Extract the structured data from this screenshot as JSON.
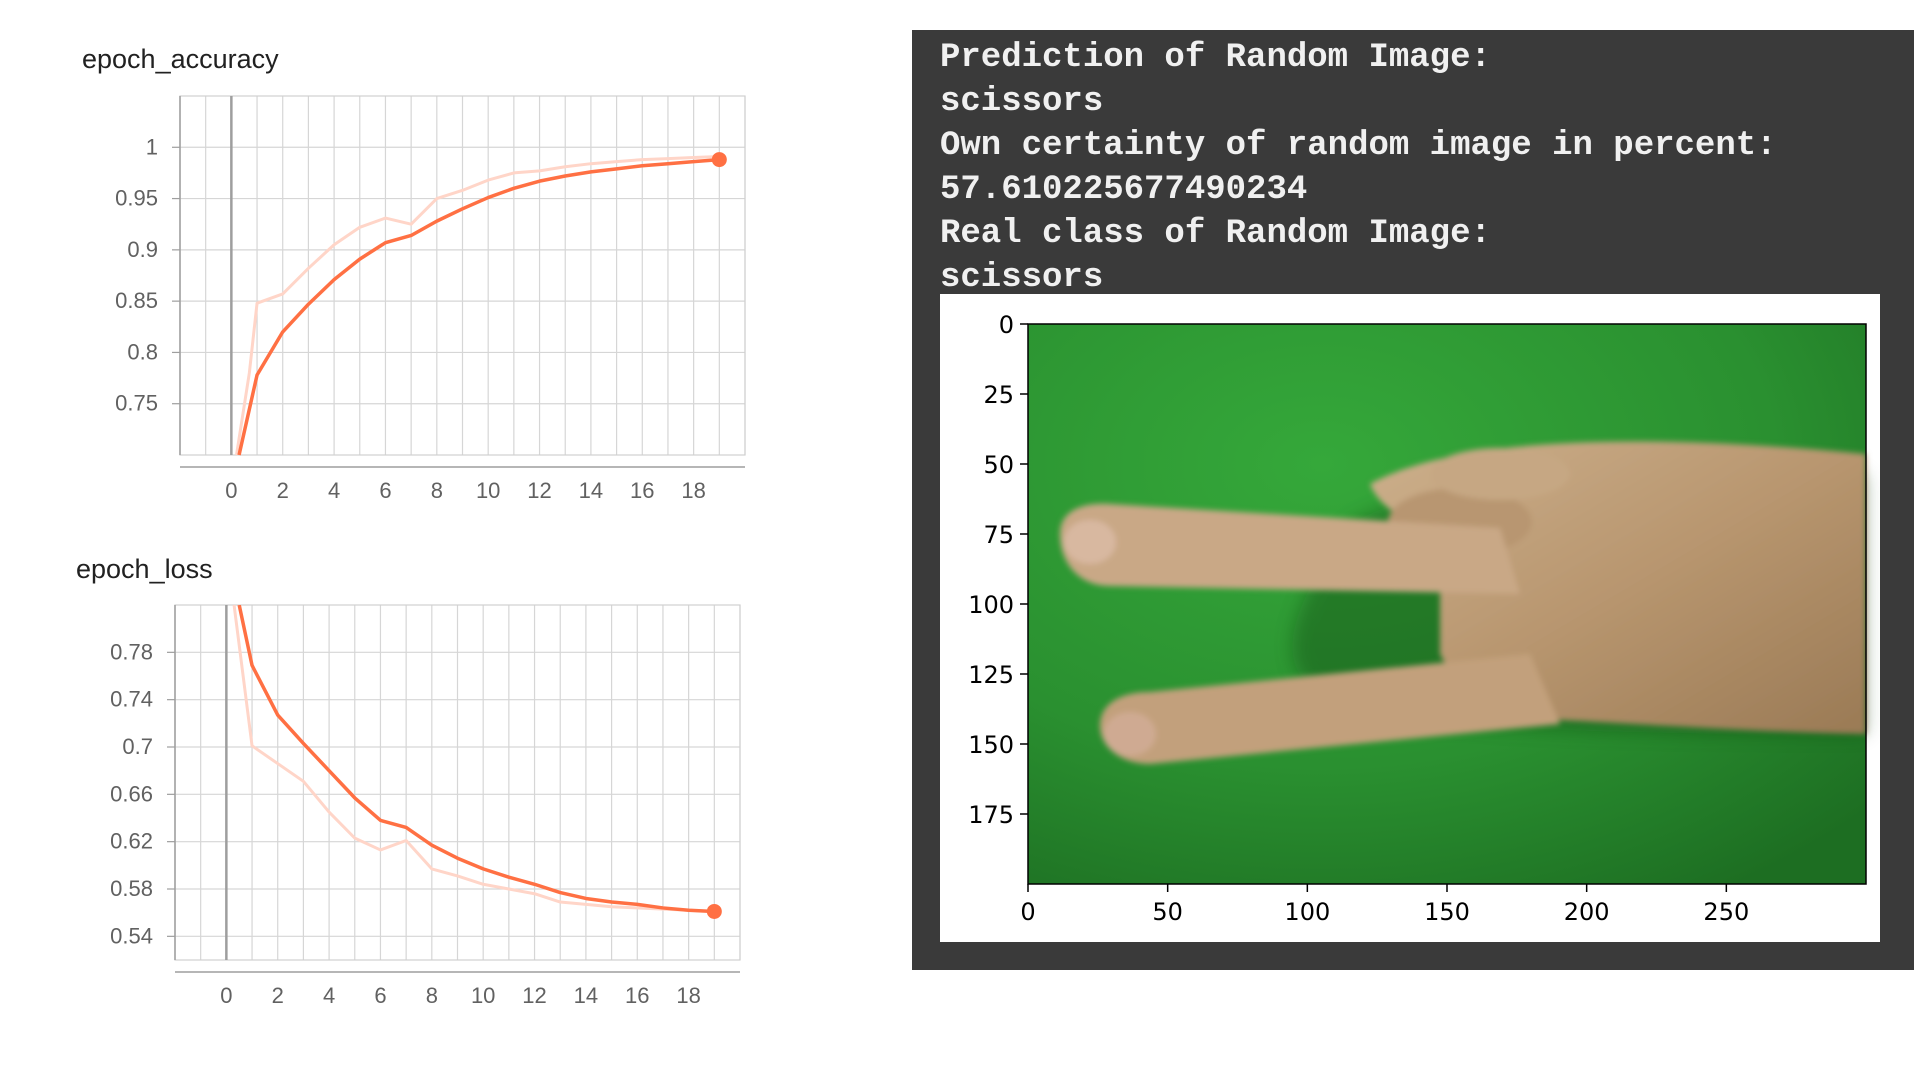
{
  "chart_data": [
    {
      "type": "line",
      "title": "epoch_accuracy",
      "x_ticks": [
        "0",
        "2",
        "4",
        "6",
        "8",
        "10",
        "12",
        "14",
        "16",
        "18"
      ],
      "y_ticks": [
        "0.75",
        "0.8",
        "0.85",
        "0.9",
        "0.95",
        "1"
      ],
      "xlim": [
        -2,
        20
      ],
      "ylim": [
        0.7,
        1.05
      ],
      "grid": true,
      "series": [
        {
          "color": "#ff7043",
          "x": [
            0.3,
            1,
            2,
            3,
            4,
            5,
            6,
            7,
            8,
            9,
            10,
            11,
            12,
            13,
            14,
            15,
            16,
            17,
            18,
            19
          ],
          "values": [
            0.7,
            0.778,
            0.82,
            0.847,
            0.871,
            0.891,
            0.907,
            0.914,
            0.928,
            0.94,
            0.951,
            0.96,
            0.967,
            0.972,
            0.976,
            0.979,
            0.982,
            0.984,
            0.986,
            0.988
          ]
        },
        {
          "color": "#ffd5c8",
          "x": [
            0.2,
            0.7,
            1,
            2,
            3,
            4,
            5,
            6,
            7,
            8,
            9,
            10,
            11,
            12,
            13,
            14,
            15,
            16,
            17,
            18,
            19
          ],
          "values": [
            0.7,
            0.78,
            0.848,
            0.857,
            0.882,
            0.905,
            0.922,
            0.931,
            0.925,
            0.95,
            0.958,
            0.968,
            0.975,
            0.977,
            0.981,
            0.984,
            0.986,
            0.988,
            0.989,
            0.99,
            0.991
          ]
        }
      ]
    },
    {
      "type": "line",
      "title": "epoch_loss",
      "x_ticks": [
        "0",
        "2",
        "4",
        "6",
        "8",
        "10",
        "12",
        "14",
        "16",
        "18"
      ],
      "y_ticks": [
        "0.54",
        "0.58",
        "0.62",
        "0.66",
        "0.7",
        "0.74",
        "0.78"
      ],
      "xlim": [
        -2,
        20
      ],
      "ylim": [
        0.52,
        0.82
      ],
      "grid": true,
      "series": [
        {
          "color": "#ff7043",
          "x": [
            0.5,
            1,
            2,
            3,
            4,
            5,
            6,
            7,
            8,
            9,
            10,
            11,
            12,
            13,
            14,
            15,
            16,
            17,
            18,
            19
          ],
          "values": [
            0.82,
            0.769,
            0.727,
            0.703,
            0.68,
            0.657,
            0.638,
            0.632,
            0.617,
            0.606,
            0.597,
            0.59,
            0.584,
            0.577,
            0.572,
            0.569,
            0.567,
            0.564,
            0.562,
            0.561
          ]
        },
        {
          "color": "#ffd5c8",
          "x": [
            0.3,
            1,
            2,
            3,
            4,
            5,
            6,
            7,
            8,
            9,
            10,
            11,
            12,
            13,
            14,
            15,
            16,
            17,
            18,
            19
          ],
          "values": [
            0.82,
            0.701,
            0.686,
            0.671,
            0.645,
            0.623,
            0.613,
            0.621,
            0.597,
            0.591,
            0.584,
            0.58,
            0.576,
            0.569,
            0.567,
            0.565,
            0.564,
            0.563,
            0.562,
            0.561
          ]
        }
      ]
    },
    {
      "type": "image",
      "x_ticks": [
        "0",
        "50",
        "100",
        "150",
        "200",
        "250"
      ],
      "y_ticks": [
        "0",
        "25",
        "50",
        "75",
        "100",
        "125",
        "150",
        "175"
      ],
      "xlim": [
        0,
        300
      ],
      "ylim": [
        200,
        0
      ]
    }
  ],
  "console": {
    "lines": [
      "Prediction of Random Image:",
      "scissors",
      "Own certainty of random image in percent:",
      "57.610225677490234",
      "Real class of Random Image:",
      "scissors"
    ]
  },
  "colors": {
    "accent": "#ff7043",
    "accent_light": "#ffd5c8",
    "console_bg": "#3a3a3a",
    "green_background": "#2e9e32"
  }
}
